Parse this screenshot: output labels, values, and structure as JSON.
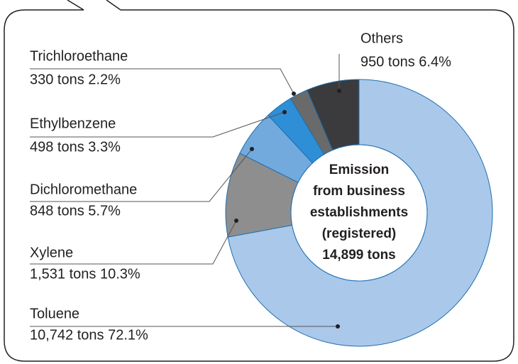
{
  "chart_data": {
    "type": "donut",
    "categories": [
      "Toluene",
      "Xylene",
      "Dichloromethane",
      "Ethylbenzene",
      "Trichloroethane",
      "Others"
    ],
    "values": [
      10742,
      1531,
      848,
      498,
      330,
      950
    ],
    "value_labels": [
      "10,742 tons 72.1%",
      "1,531 tons 10.3%",
      "848 tons 5.7%",
      "498 tons 3.3%",
      "330 tons 2.2%",
      "950 tons 6.4%"
    ],
    "colors": [
      "#aac8ea",
      "#8e8e8e",
      "#72aade",
      "#2f8fd6",
      "#6a6a6a",
      "#3b3b3d"
    ],
    "center_text": [
      "Emission",
      "from business",
      "establishments",
      "(registered)",
      "14,899 tons"
    ]
  }
}
